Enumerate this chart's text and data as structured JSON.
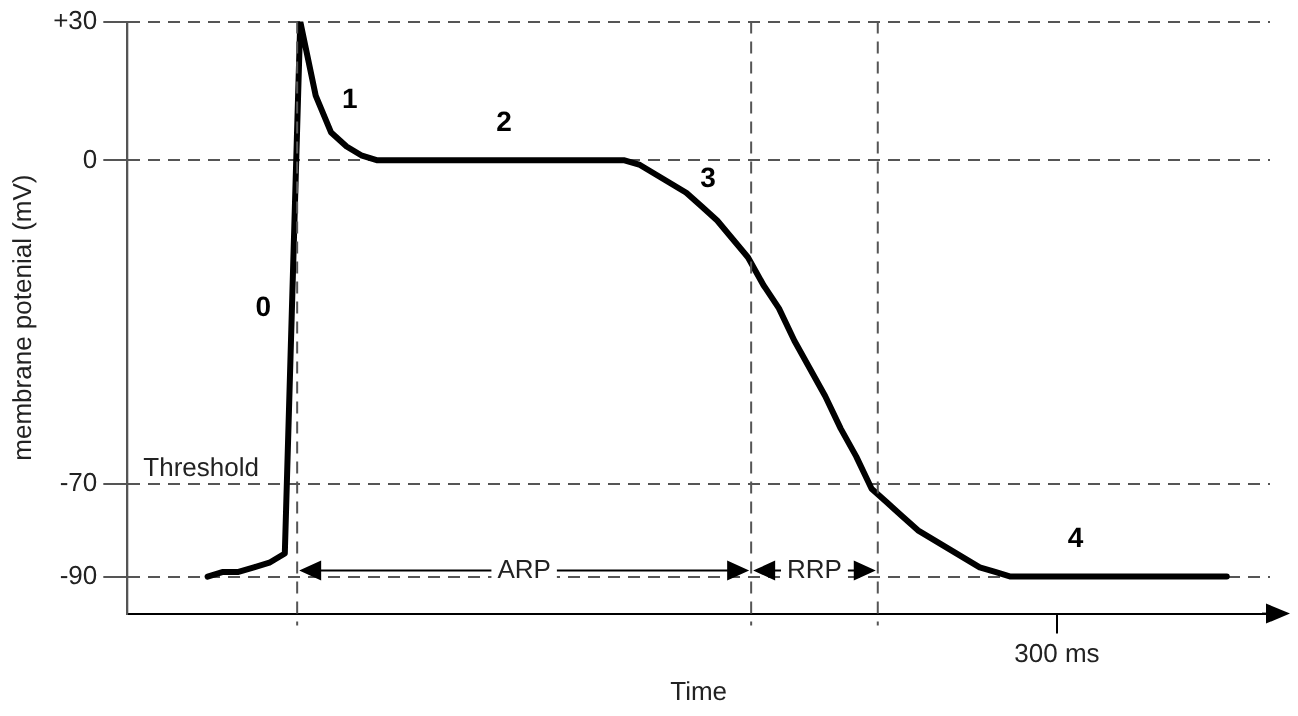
{
  "chart_data": {
    "type": "line",
    "xlabel": "Time",
    "ylabel": "membrane potenial (mV)",
    "categories": [
      null,
      null,
      null,
      null,
      null,
      null,
      null,
      null,
      null,
      null,
      null,
      null,
      null,
      null,
      null,
      null,
      null,
      null,
      null,
      null,
      null,
      null,
      null,
      null,
      null,
      null,
      null,
      null,
      null,
      null,
      null,
      null,
      null,
      null,
      null,
      null,
      null,
      null,
      null,
      null,
      null,
      null,
      null,
      null,
      null,
      null,
      null,
      null,
      null,
      null,
      null,
      null,
      null,
      null,
      null,
      "300 ms",
      null,
      null,
      null,
      null,
      null,
      null,
      null,
      null,
      null,
      null,
      null
    ],
    "series": [
      {
        "color": "#000000",
        "values": [
          -90,
          -89,
          -89,
          -88,
          -87,
          -85,
          30,
          14,
          6,
          3,
          1,
          0,
          0,
          0,
          0,
          0,
          0,
          0,
          0,
          0,
          0,
          0,
          0,
          0,
          0,
          0,
          0,
          0,
          -1,
          -3,
          -5,
          -7,
          -10,
          -13,
          -17,
          -21,
          -27,
          -32,
          -39,
          -45,
          -51,
          -58,
          -64,
          -71,
          -74,
          -77,
          -80,
          -82,
          -84,
          -86,
          -88,
          -89,
          -90,
          -90,
          -90,
          -90,
          -90,
          -90,
          -90,
          -90,
          -90,
          -90,
          -90,
          -90,
          -90,
          -90,
          -90
        ]
      }
    ],
    "ylim": [
      -98,
      30
    ],
    "yticks": [
      -90,
      -70,
      0,
      {
        "value": 30,
        "label": "+30"
      }
    ],
    "grid": "y",
    "legend": false,
    "marker": "none",
    "line_style": "solid",
    "annotations": [
      "0",
      "1",
      "2",
      "3",
      "4",
      "Threshold",
      "ARP",
      "RRP"
    ]
  }
}
